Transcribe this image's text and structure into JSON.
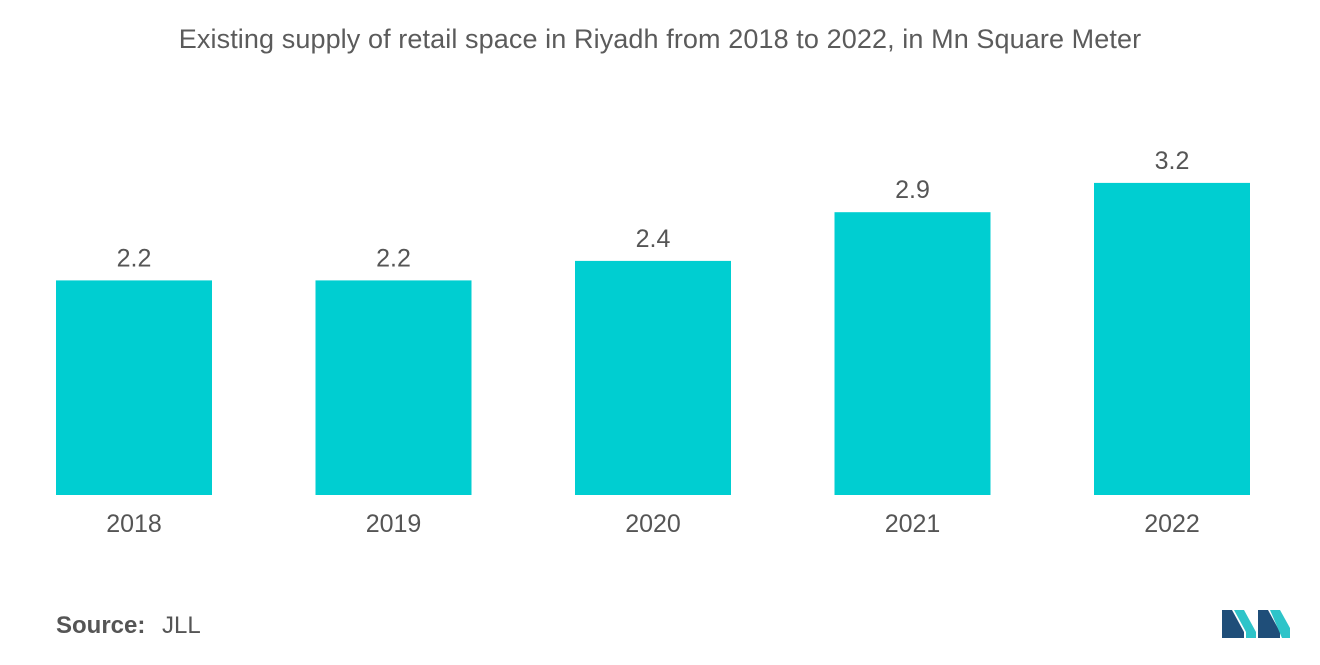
{
  "chart_data": {
    "type": "bar",
    "title": "Existing supply of retail space in Riyadh from 2018 to 2022, in Mn Square Meter",
    "categories": [
      "2018",
      "2019",
      "2020",
      "2021",
      "2022"
    ],
    "values": [
      2.2,
      2.2,
      2.4,
      2.9,
      3.2
    ],
    "data_labels": [
      "2.2",
      "2.2",
      "2.4",
      "2.9",
      "3.2"
    ],
    "xlabel": "",
    "ylabel": "",
    "ylim": [
      0,
      4.05
    ],
    "grid": false,
    "legend": "none",
    "bar_color": "#00ced1"
  },
  "source": {
    "label": "Source:",
    "value": "JLL"
  },
  "logo": {
    "icon": "mordor-intelligence-logo-icon",
    "colors": [
      "#1f4e79",
      "#2ec4c9"
    ]
  }
}
